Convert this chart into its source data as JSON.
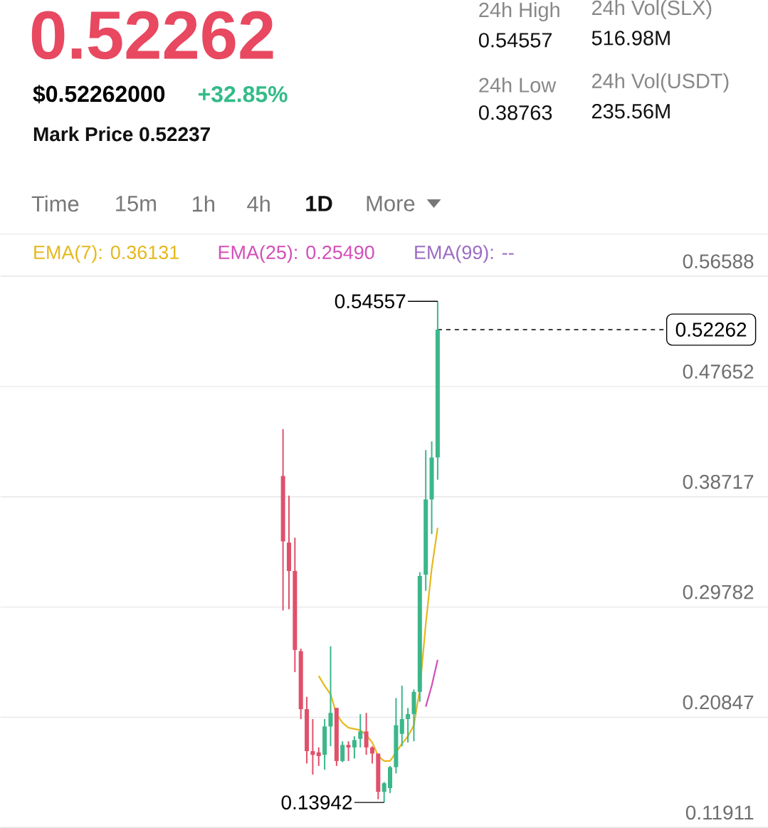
{
  "chart_data": {
    "type": "candlestick",
    "title": "0.52262",
    "subtitle": "$0.52262000",
    "annotations": [
      "+32.85%",
      "Mark Price 0.52237",
      "24h High",
      "0.54557",
      "24h Vol(SLX)",
      "516.98M",
      "24h Low",
      "0.38763",
      "24h Vol(USDT)",
      "235.56M",
      "Time",
      "15m",
      "1h",
      "4h",
      "1D",
      "More",
      "EMA(99): --",
      "0.54557",
      "0.13942"
    ],
    "categories": [
      null,
      null,
      null,
      null,
      null,
      null,
      null,
      null,
      null,
      null,
      null,
      null,
      null,
      null,
      null,
      null,
      null,
      null,
      null,
      null,
      null,
      null,
      null,
      null,
      null,
      null,
      null,
      null,
      null,
      null,
      null,
      null,
      null,
      null,
      null,
      null,
      null,
      null,
      null,
      null,
      null,
      null,
      null,
      null,
      null,
      null,
      null,
      null,
      null,
      null,
      null,
      null,
      null,
      null,
      null,
      null,
      null,
      null,
      null,
      null,
      null,
      null,
      null,
      null,
      null,
      null,
      null,
      null,
      null,
      null,
      null,
      null,
      null,
      null,
      null,
      null,
      null,
      null,
      null,
      null,
      null,
      null,
      null,
      null,
      null,
      null,
      null,
      null,
      null,
      null,
      null,
      null,
      null,
      null,
      null,
      null,
      null,
      null,
      null,
      null,
      null,
      null,
      null,
      null,
      null,
      null,
      null,
      null,
      null,
      null,
      null,
      null,
      null,
      null,
      null,
      null,
      null,
      null,
      null,
      null,
      null,
      null,
      null,
      null,
      null,
      null,
      null,
      null,
      null
    ],
    "ohlc": [
      null,
      null,
      null,
      null,
      null,
      null,
      null,
      null,
      null,
      null,
      null,
      null,
      null,
      null,
      null,
      null,
      null,
      null,
      null,
      null,
      null,
      null,
      null,
      null,
      null,
      null,
      null,
      null,
      null,
      null,
      null,
      null,
      null,
      null,
      null,
      null,
      null,
      null,
      null,
      null,
      null,
      null,
      null,
      null,
      null,
      null,
      null,
      [
        0.404,
        0.442,
        0.295,
        0.351
      ],
      [
        0.35,
        0.388,
        0.296,
        0.327
      ],
      [
        0.327,
        0.354,
        0.245,
        0.263
      ],
      [
        0.262,
        0.264,
        0.207,
        0.215
      ],
      [
        0.215,
        0.225,
        0.171,
        0.181
      ],
      [
        0.181,
        0.207,
        0.162,
        0.178
      ],
      [
        0.18,
        0.184,
        0.169,
        0.177
      ],
      [
        0.178,
        0.207,
        0.166,
        0.201
      ],
      [
        0.201,
        0.266,
        0.185,
        0.212
      ],
      [
        0.216,
        0.216,
        0.169,
        0.173
      ],
      [
        0.173,
        0.189,
        0.172,
        0.186
      ],
      [
        0.186,
        0.189,
        0.173,
        0.184
      ],
      [
        0.184,
        0.193,
        0.175,
        0.19
      ],
      [
        0.191,
        0.211,
        0.184,
        0.197
      ],
      [
        0.197,
        0.212,
        0.178,
        0.184
      ],
      [
        0.184,
        0.185,
        0.171,
        0.179
      ],
      [
        0.179,
        0.179,
        0.142,
        0.148
      ],
      [
        0.148,
        0.156,
        0.13942,
        0.155
      ],
      [
        0.151,
        0.169,
        0.147,
        0.168
      ],
      [
        0.168,
        0.224,
        0.163,
        0.202
      ],
      [
        0.195,
        0.234,
        0.185,
        0.207
      ],
      [
        0.207,
        0.216,
        0.188,
        0.211
      ],
      [
        0.211,
        0.231,
        0.189,
        0.229
      ],
      [
        0.229,
        0.326,
        0.221,
        0.323
      ],
      [
        0.324,
        0.425,
        0.311,
        0.385
      ],
      [
        0.385,
        0.432,
        0.357,
        0.419
      ],
      [
        0.419,
        0.54557,
        0.401,
        0.52262
      ],
      null,
      null,
      null,
      null,
      null,
      null,
      null,
      null,
      null,
      null,
      null,
      null,
      null,
      null,
      null,
      null,
      null,
      null,
      null,
      null,
      null,
      null,
      null,
      null,
      null,
      null,
      null,
      null,
      null,
      null,
      null,
      null,
      null,
      null,
      null,
      null,
      null,
      null,
      null,
      null,
      null,
      null,
      null,
      null,
      null,
      null,
      null,
      null,
      null,
      null,
      null,
      null,
      null,
      null,
      null
    ],
    "colors": [
      null,
      null,
      null,
      null,
      null,
      null,
      null,
      null,
      null,
      null,
      null,
      null,
      null,
      null,
      null,
      null,
      null,
      null,
      null,
      null,
      null,
      null,
      null,
      null,
      null,
      null,
      null,
      null,
      null,
      null,
      null,
      null,
      null,
      null,
      null,
      null,
      null,
      null,
      null,
      null,
      null,
      null,
      null,
      null,
      null,
      null,
      null,
      "#e0506a",
      "#e0506a",
      "#e0506a",
      "#e0506a",
      "#e0506a",
      "#e0506a",
      "#e0506a",
      "#3bb78a",
      "#3bb78a",
      "#e0506a",
      "#3bb78a",
      "#e0506a",
      "#3bb78a",
      "#3bb78a",
      "#e0506a",
      "#e0506a",
      "#e0506a",
      "#3bb78a",
      "#3bb78a",
      "#3bb78a",
      "#3bb78a",
      "#3bb78a",
      "#3bb78a",
      "#3bb78a",
      "#3bb78a",
      "#3bb78a",
      "#3bb78a",
      null,
      null,
      null,
      null,
      null,
      null,
      null,
      null,
      null,
      null,
      null,
      null,
      null,
      null,
      null,
      null,
      null,
      null,
      null,
      null,
      null,
      null,
      null,
      null,
      null,
      null,
      null,
      null,
      null,
      null,
      null,
      null,
      null,
      null,
      null,
      null,
      null,
      null,
      null,
      null,
      null,
      null,
      null,
      null,
      null,
      null,
      null,
      null,
      null,
      null,
      null,
      null,
      null,
      null,
      null
    ],
    "series": [
      {
        "type": "line",
        "name": "EMA(7): 0.36131",
        "color": "#e6b81e",
        "values": [
          null,
          null,
          null,
          null,
          null,
          null,
          null,
          null,
          null,
          null,
          null,
          null,
          null,
          null,
          null,
          null,
          null,
          null,
          null,
          null,
          null,
          null,
          null,
          null,
          null,
          null,
          null,
          null,
          null,
          null,
          null,
          null,
          null,
          null,
          null,
          null,
          null,
          null,
          null,
          null,
          null,
          null,
          null,
          null,
          null,
          null,
          null,
          null,
          null,
          null,
          null,
          null,
          null,
          0.242,
          0.234,
          0.227,
          0.211,
          0.204,
          0.2,
          0.199,
          0.198,
          0.194,
          0.188,
          0.177,
          0.173,
          0.173,
          0.18,
          0.187,
          0.193,
          0.202,
          0.231,
          0.284,
          0.329,
          0.362,
          null,
          null,
          null,
          null,
          null,
          null,
          null,
          null,
          null,
          null,
          null,
          null,
          null,
          null,
          null,
          null,
          null,
          null,
          null,
          null,
          null,
          null,
          null,
          null,
          null,
          null,
          null,
          null,
          null,
          null,
          null,
          null,
          null,
          null,
          null,
          null,
          null,
          null,
          null,
          null,
          null,
          null,
          null,
          null,
          null,
          null,
          null,
          null,
          null,
          null,
          null,
          null,
          null,
          null,
          null
        ]
      },
      {
        "type": "line",
        "name": "EMA(25): 0.25490",
        "color": "#d44fb8",
        "values": [
          null,
          null,
          null,
          null,
          null,
          null,
          null,
          null,
          null,
          null,
          null,
          null,
          null,
          null,
          null,
          null,
          null,
          null,
          null,
          null,
          null,
          null,
          null,
          null,
          null,
          null,
          null,
          null,
          null,
          null,
          null,
          null,
          null,
          null,
          null,
          null,
          null,
          null,
          null,
          null,
          null,
          null,
          null,
          null,
          null,
          null,
          null,
          null,
          null,
          null,
          null,
          null,
          null,
          null,
          null,
          null,
          null,
          null,
          null,
          null,
          null,
          null,
          null,
          null,
          null,
          null,
          null,
          null,
          null,
          null,
          null,
          0.217,
          0.234,
          0.255,
          null,
          null,
          null,
          null,
          null,
          null,
          null,
          null,
          null,
          null,
          null,
          null,
          null,
          null,
          null,
          null,
          null,
          null,
          null,
          null,
          null,
          null,
          null,
          null,
          null,
          null,
          null,
          null,
          null,
          null,
          null,
          null,
          null,
          null,
          null,
          null,
          null,
          null,
          null,
          null,
          null,
          null,
          null,
          null,
          null,
          null,
          null,
          null,
          null,
          null,
          null,
          null,
          null,
          null,
          null
        ]
      }
    ],
    "ref_lines": [
      {
        "axis": "y",
        "value": 0.52262,
        "label": "0.52262",
        "line_style": "dashed"
      }
    ],
    "ylim": [
      0.11911,
      0.6
    ],
    "yticks": [
      0.11911,
      0.20847,
      0.29782,
      0.38717,
      0.47652,
      0.56588
    ],
    "grid": "y"
  }
}
